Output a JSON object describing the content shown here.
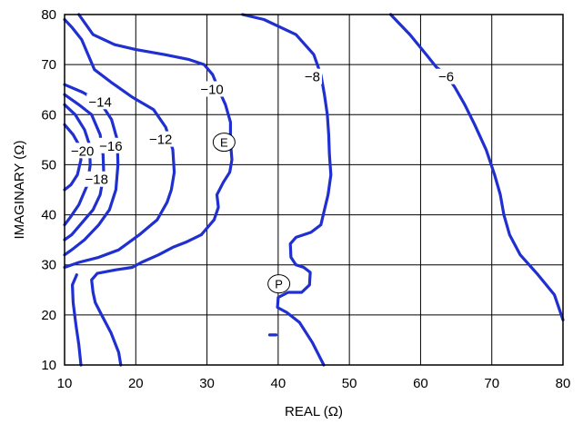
{
  "chart_data": {
    "type": "line",
    "title": "",
    "xlabel": "REAL (Ω)",
    "ylabel": "IMAGINARY (Ω)",
    "xlim": [
      10,
      80
    ],
    "ylim": [
      10,
      80
    ],
    "xticks": [
      "10",
      "20",
      "30",
      "40",
      "50",
      "60",
      "70",
      "80"
    ],
    "yticks": [
      "10",
      "20",
      "30",
      "40",
      "50",
      "60",
      "70",
      "80"
    ],
    "grid": true,
    "color": "#1f2fd0",
    "series": [
      {
        "name": "−20",
        "points": [
          [
            10,
            58
          ],
          [
            11.2,
            56
          ],
          [
            12,
            54
          ],
          [
            12.3,
            51
          ],
          [
            11.8,
            48
          ],
          [
            10.9,
            46
          ],
          [
            10,
            45
          ]
        ]
      },
      {
        "name": "−18",
        "points": [
          [
            10,
            62
          ],
          [
            11.5,
            60
          ],
          [
            12.8,
            57
          ],
          [
            13.5,
            54
          ],
          [
            13.6,
            50
          ],
          [
            13.2,
            46
          ],
          [
            12,
            42
          ],
          [
            10.8,
            39.5
          ],
          [
            10,
            38
          ]
        ]
      },
      {
        "name": "−16",
        "points": [
          [
            10,
            64
          ],
          [
            12,
            62
          ],
          [
            13.8,
            60
          ],
          [
            15,
            56
          ],
          [
            15.4,
            52
          ],
          [
            15.5,
            48
          ],
          [
            15,
            44
          ],
          [
            14,
            41
          ],
          [
            12.5,
            38.5
          ],
          [
            11,
            36
          ],
          [
            10,
            35
          ]
        ]
      },
      {
        "name": "−14",
        "points": [
          [
            10,
            66
          ],
          [
            12.5,
            64.5
          ],
          [
            15,
            62.5
          ],
          [
            16.6,
            59
          ],
          [
            17.4,
            55
          ],
          [
            17.5,
            50
          ],
          [
            17.2,
            45
          ],
          [
            16.3,
            41
          ],
          [
            14.8,
            38
          ],
          [
            12.8,
            35
          ],
          [
            11,
            33
          ],
          [
            10,
            32
          ]
        ]
      },
      {
        "name": "−12",
        "points": [
          [
            10,
            79
          ],
          [
            11,
            77.5
          ],
          [
            12.4,
            75
          ],
          [
            13.3,
            72
          ],
          [
            14.2,
            69
          ],
          [
            16.5,
            66.5
          ],
          [
            19.5,
            63.5
          ],
          [
            22.5,
            61
          ],
          [
            24.2,
            57.5
          ],
          [
            25.2,
            53
          ],
          [
            25.4,
            48.5
          ],
          [
            25,
            45
          ],
          [
            24.4,
            42.5
          ],
          [
            23,
            39
          ],
          [
            20.5,
            36
          ],
          [
            17.6,
            33
          ],
          [
            14.8,
            31.5
          ],
          [
            12,
            30.5
          ],
          [
            10,
            29.5
          ]
        ]
      },
      {
        "name": "−10",
        "points": [
          [
            12,
            80
          ],
          [
            14,
            76
          ],
          [
            17,
            74
          ],
          [
            20,
            73
          ],
          [
            24,
            72
          ],
          [
            27.5,
            71
          ],
          [
            29.6,
            70
          ],
          [
            30.8,
            68
          ],
          [
            31.8,
            64.5
          ],
          [
            32.6,
            62
          ],
          [
            33.3,
            58.5
          ],
          [
            33.3,
            54.5
          ],
          [
            33.5,
            51
          ],
          [
            33.2,
            48.5
          ],
          [
            32.3,
            46.5
          ],
          [
            31.4,
            44
          ],
          [
            31.6,
            41.5
          ],
          [
            31,
            39
          ],
          [
            29.2,
            36
          ],
          [
            27,
            34.5
          ],
          [
            25.2,
            33.5
          ],
          [
            23.2,
            32
          ],
          [
            20.8,
            30.5
          ],
          [
            19.5,
            29.5
          ],
          [
            17.2,
            29
          ],
          [
            14.6,
            28.3
          ],
          [
            13.8,
            27
          ],
          [
            14,
            24.5
          ],
          [
            14.3,
            22.5
          ],
          [
            15.2,
            20
          ],
          [
            16.5,
            16.5
          ],
          [
            17.6,
            12.5
          ],
          [
            17.9,
            10
          ]
        ]
      },
      {
        "name": "",
        "points": [
          [
            11.7,
            28
          ],
          [
            11.1,
            26
          ],
          [
            11.2,
            22.5
          ],
          [
            11.6,
            18
          ],
          [
            12,
            14
          ],
          [
            12.3,
            10
          ]
        ]
      },
      {
        "name": "−8",
        "points": [
          [
            35,
            80
          ],
          [
            38,
            79
          ],
          [
            42.5,
            76
          ],
          [
            45,
            72
          ],
          [
            46,
            68
          ],
          [
            46.5,
            64
          ],
          [
            46.9,
            60
          ],
          [
            47.1,
            56
          ],
          [
            47.2,
            52
          ],
          [
            47.4,
            48
          ],
          [
            47,
            44
          ],
          [
            46.5,
            41
          ],
          [
            46,
            38
          ],
          [
            44.6,
            36.5
          ],
          [
            42.5,
            35.5
          ],
          [
            41.7,
            34.2
          ],
          [
            41.8,
            31.5
          ],
          [
            42.5,
            30
          ],
          [
            43.6,
            29.5
          ],
          [
            44.5,
            28.5
          ],
          [
            44.4,
            26
          ],
          [
            43.3,
            24.5
          ],
          [
            41.4,
            24.5
          ],
          [
            40,
            23.5
          ],
          [
            39.9,
            21.5
          ],
          [
            41.2,
            20.5
          ],
          [
            43,
            18.5
          ],
          [
            44.8,
            14.5
          ],
          [
            46.4,
            10
          ]
        ]
      },
      {
        "name": "−6",
        "points": [
          [
            55.8,
            80
          ],
          [
            58.5,
            76
          ],
          [
            60.8,
            72
          ],
          [
            62.2,
            69.5
          ],
          [
            63.6,
            68
          ],
          [
            64.8,
            65.5
          ],
          [
            66.2,
            62
          ],
          [
            67.6,
            58
          ],
          [
            69.2,
            53
          ],
          [
            70.4,
            48
          ],
          [
            71.2,
            44
          ],
          [
            71.7,
            40
          ],
          [
            72.5,
            36
          ],
          [
            74,
            32
          ],
          [
            76.5,
            28
          ],
          [
            78.8,
            24
          ],
          [
            80,
            19
          ]
        ]
      },
      {
        "name": "",
        "points": [
          [
            38.8,
            16
          ],
          [
            39.7,
            16
          ]
        ]
      }
    ],
    "markers": [
      {
        "label": "E",
        "x": 32.4,
        "y": 54.5
      },
      {
        "label": "P",
        "x": 40.1,
        "y": 26.2
      }
    ],
    "annotations": [
      {
        "text": "−20",
        "x": 12.5,
        "y": 52.2
      },
      {
        "text": "−18",
        "x": 14.5,
        "y": 46.5
      },
      {
        "text": "−16",
        "x": 16.5,
        "y": 53.2
      },
      {
        "text": "−14",
        "x": 15,
        "y": 62
      },
      {
        "text": "−12",
        "x": 23.5,
        "y": 54.5
      },
      {
        "text": "−10",
        "x": 30.7,
        "y": 64.5
      },
      {
        "text": "−8",
        "x": 44.8,
        "y": 67
      },
      {
        "text": "−6",
        "x": 63.6,
        "y": 67
      }
    ]
  }
}
